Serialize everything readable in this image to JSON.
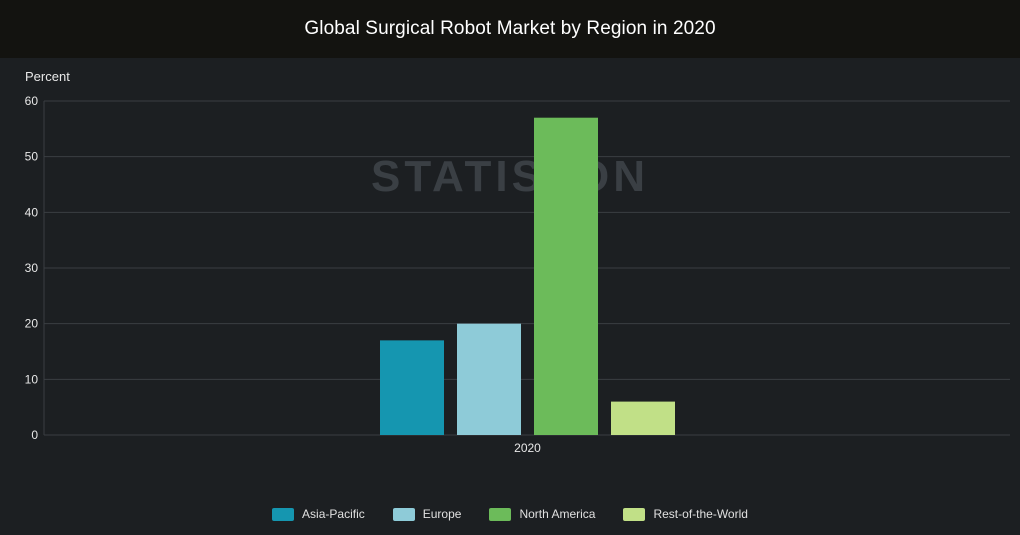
{
  "header": {
    "title": "Global Surgical Robot Market by Region in 2020"
  },
  "watermark": "STATISTON",
  "colors": {
    "background": "#1c1f22",
    "header_bg": "#131310",
    "grid": "#3a3e42",
    "axis_text": "#e8e8e8"
  },
  "chart_data": {
    "type": "bar",
    "title": "Global Surgical Robot Market by Region in 2020",
    "ylabel": "Percent",
    "xlabel": "",
    "categories": [
      "2020"
    ],
    "ylim": [
      0,
      60
    ],
    "yticks": [
      0,
      10,
      20,
      30,
      40,
      50,
      60
    ],
    "grid": true,
    "legend_position": "bottom",
    "series": [
      {
        "name": "Asia-Pacific",
        "values": [
          17
        ],
        "color": "#1596b0"
      },
      {
        "name": "Europe",
        "values": [
          20
        ],
        "color": "#8ecbd8"
      },
      {
        "name": "North America",
        "values": [
          57
        ],
        "color": "#6cbb5a"
      },
      {
        "name": "Rest-of-the-World",
        "values": [
          6
        ],
        "color": "#c1e087"
      }
    ]
  }
}
